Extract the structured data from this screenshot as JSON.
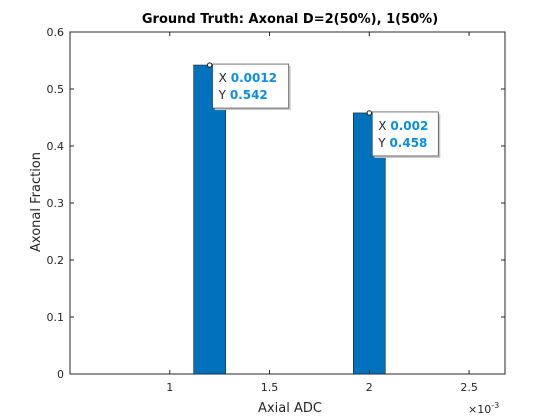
{
  "chart_data": {
    "type": "bar",
    "title": "Ground Truth: Axonal D=2(50%), 1(50%)",
    "xlabel": "Axial ADC",
    "ylabel": "Axonal Fraction",
    "x_exponent_label": "×10",
    "x_exponent_power": "-3",
    "xlim": [
      0.0005,
      0.00268
    ],
    "ylim": [
      0,
      0.6
    ],
    "xticks": [
      0.001,
      0.0015,
      0.002,
      0.0025
    ],
    "xtick_labels": [
      "1",
      "1.5",
      "2",
      "2.5"
    ],
    "yticks": [
      0,
      0.1,
      0.2,
      0.3,
      0.4,
      0.5,
      0.6
    ],
    "ytick_labels": [
      "0",
      "0.1",
      "0.2",
      "0.3",
      "0.4",
      "0.5",
      "0.6"
    ],
    "bar_width": 8e-05,
    "bars": [
      {
        "x": 0.0012,
        "y": 0.542
      },
      {
        "x": 0.002,
        "y": 0.458
      }
    ],
    "datatips": [
      {
        "x_label": "X",
        "x_value": "0.0012",
        "y_label": "Y",
        "y_value": "0.542",
        "x": 0.0012,
        "y": 0.542
      },
      {
        "x_label": "X",
        "x_value": "0.002",
        "y_label": "Y",
        "y_value": "0.458",
        "x": 0.002,
        "y": 0.458
      }
    ],
    "grid": false,
    "colors": {
      "bar": "#0072bd",
      "bar_edge": "#1a1a1a",
      "axis": "#262626",
      "datatip_value": "#0a8ee0",
      "datatip_border": "#555555"
    }
  }
}
